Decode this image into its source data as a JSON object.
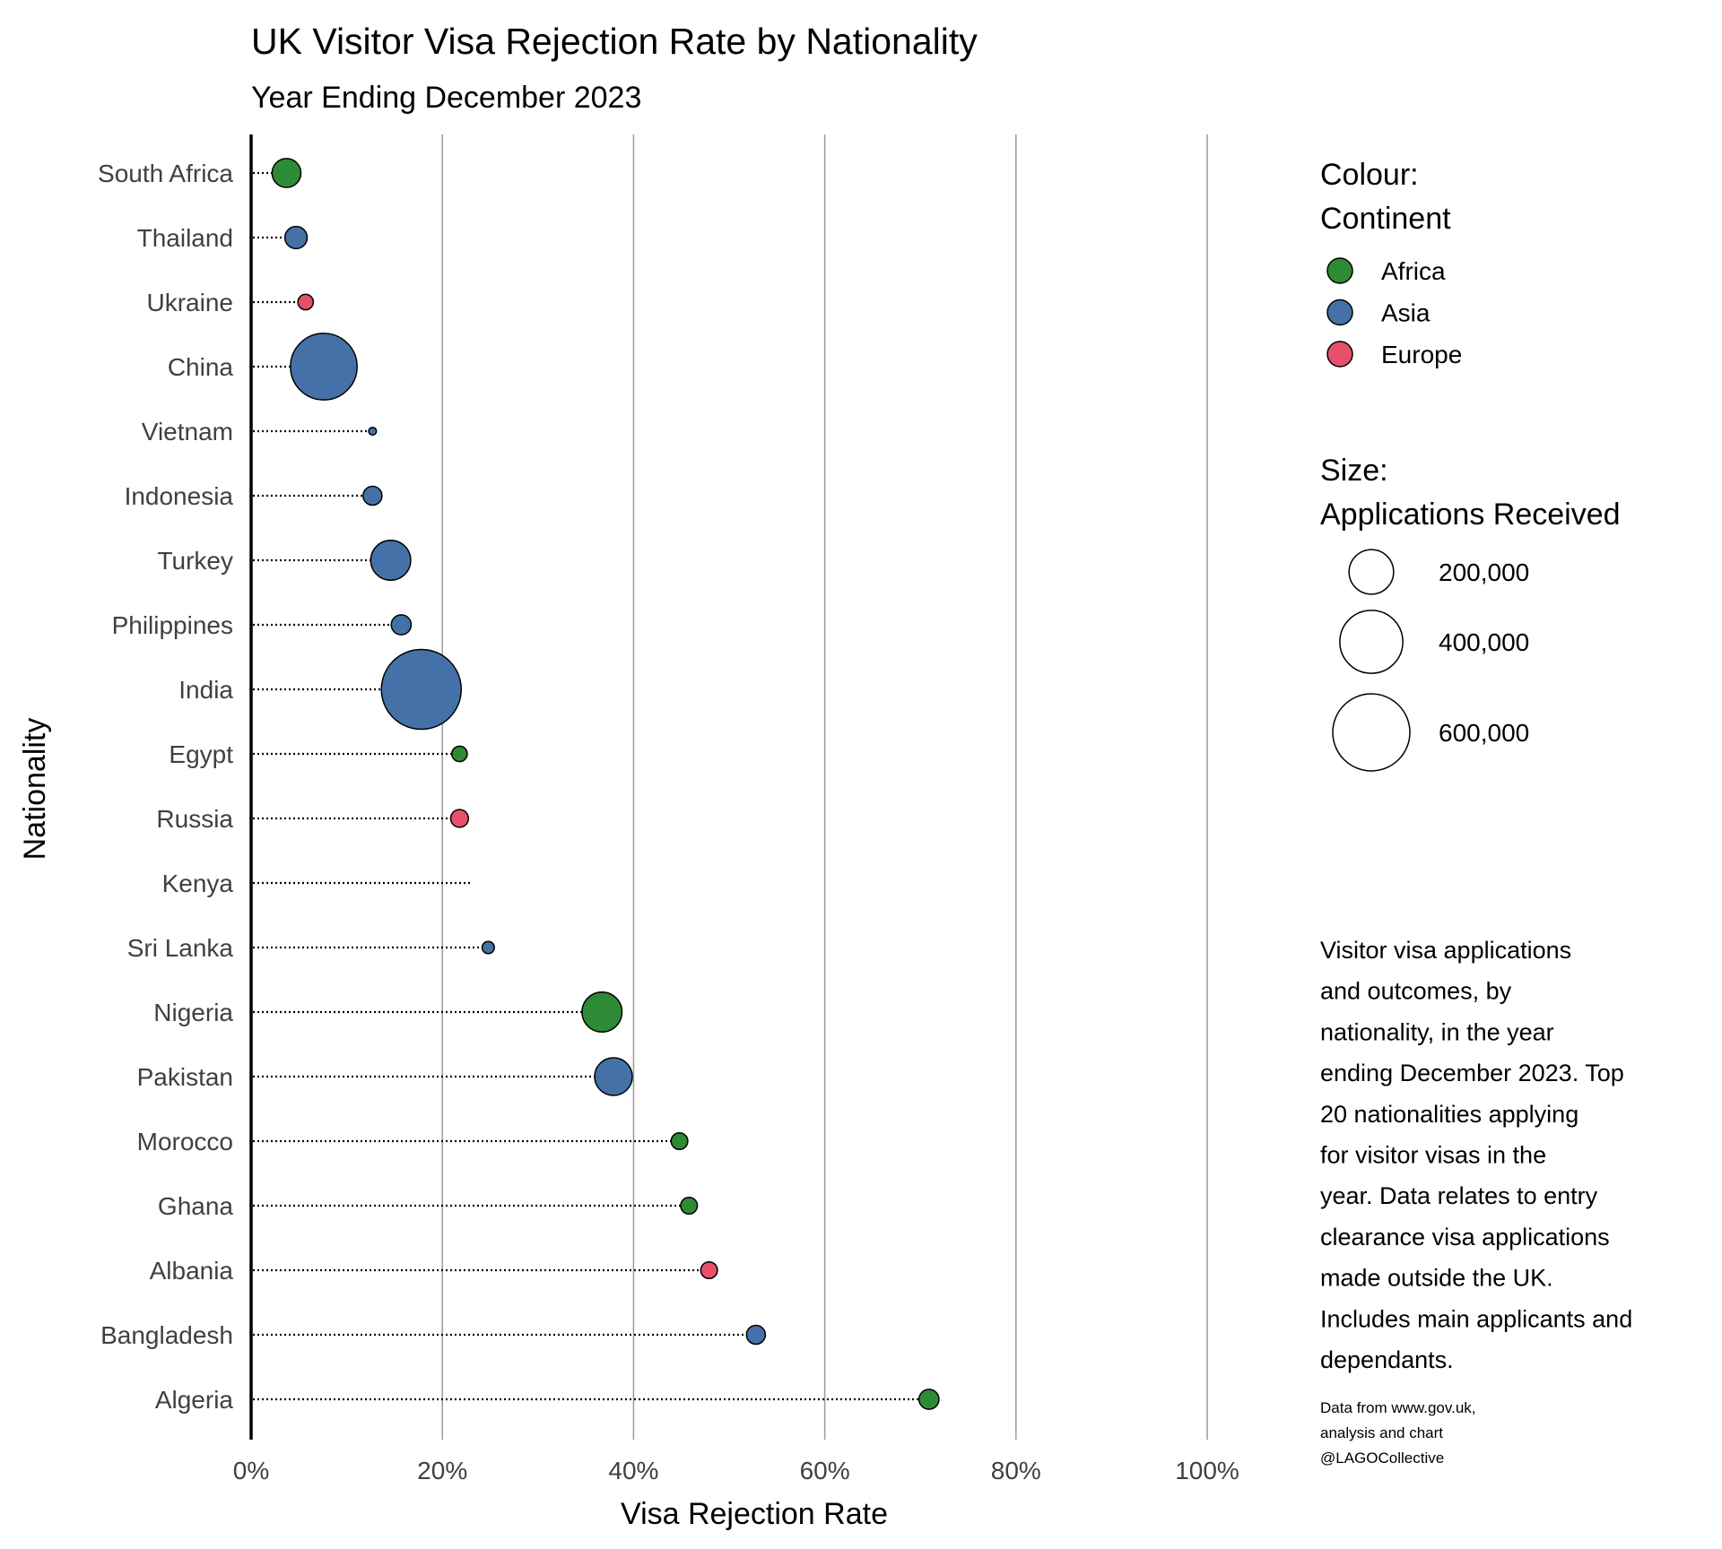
{
  "chart_data": {
    "type": "scatter",
    "title": "UK Visitor Visa Rejection Rate by Nationality",
    "subtitle": "Year Ending December 2023",
    "xlabel": "Visa Rejection Rate",
    "ylabel": "Nationality",
    "xlim": [
      0,
      100
    ],
    "x_ticks": [
      "0%",
      "20%",
      "40%",
      "60%",
      "80%",
      "100%"
    ],
    "x_tick_values": [
      0,
      20,
      40,
      60,
      80,
      100
    ],
    "grid": "vertical major",
    "colors": {
      "Africa": "#2e8b35",
      "Asia": "#4472a8",
      "Europe": "#e6506a"
    },
    "points": [
      {
        "nationality": "South Africa",
        "rate": 3.7,
        "continent": "Africa",
        "applications": 84000
      },
      {
        "nationality": "Thailand",
        "rate": 4.7,
        "continent": "Asia",
        "applications": 50000
      },
      {
        "nationality": "Ukraine",
        "rate": 5.7,
        "continent": "Europe",
        "applications": 24000
      },
      {
        "nationality": "China",
        "rate": 7.6,
        "continent": "Asia",
        "applications": 447000
      },
      {
        "nationality": "Vietnam",
        "rate": 12.7,
        "continent": "Asia",
        "applications": 6000
      },
      {
        "nationality": "Indonesia",
        "rate": 12.7,
        "continent": "Asia",
        "applications": 36000
      },
      {
        "nationality": "Turkey",
        "rate": 14.6,
        "continent": "Asia",
        "applications": 161000
      },
      {
        "nationality": "Philippines",
        "rate": 15.7,
        "continent": "Asia",
        "applications": 40000
      },
      {
        "nationality": "India",
        "rate": 17.8,
        "continent": "Asia",
        "applications": 643000
      },
      {
        "nationality": "Egypt",
        "rate": 21.8,
        "continent": "Africa",
        "applications": 24000
      },
      {
        "nationality": "Russia",
        "rate": 21.8,
        "continent": "Europe",
        "applications": 32000
      },
      {
        "nationality": "Kenya",
        "rate": 22.9,
        "continent": null,
        "applications": null
      },
      {
        "nationality": "Sri Lanka",
        "rate": 24.8,
        "continent": "Asia",
        "applications": 15000
      },
      {
        "nationality": "Nigeria",
        "rate": 36.7,
        "continent": "Africa",
        "applications": 161000
      },
      {
        "nationality": "Pakistan",
        "rate": 37.9,
        "continent": "Asia",
        "applications": 143000
      },
      {
        "nationality": "Morocco",
        "rate": 44.8,
        "continent": "Africa",
        "applications": 28000
      },
      {
        "nationality": "Ghana",
        "rate": 45.8,
        "continent": "Africa",
        "applications": 28000
      },
      {
        "nationality": "Albania",
        "rate": 47.9,
        "continent": "Europe",
        "applications": 28000
      },
      {
        "nationality": "Bangladesh",
        "rate": 52.8,
        "continent": "Asia",
        "applications": 36000
      },
      {
        "nationality": "Algeria",
        "rate": 70.9,
        "continent": "Africa",
        "applications": 40000
      }
    ],
    "legend_colour": {
      "title_line1": "Colour:",
      "title_line2": "Continent",
      "entries": [
        "Africa",
        "Asia",
        "Europe"
      ],
      "placement": "right"
    },
    "legend_size": {
      "title_line1": "Size:",
      "title_line2": "Applications Received",
      "values": [
        200000,
        400000,
        600000
      ],
      "labels": [
        "200,000",
        "400,000",
        "600,000"
      ],
      "placement": "right"
    },
    "note_lines": [
      "Visitor visa applications",
      "and outcomes, by",
      "nationality, in the year",
      "ending December 2023. Top",
      "20 nationalities applying",
      "for visitor visas in the",
      "year. Data relates to entry",
      "clearance visa applications",
      "made outside the UK.",
      "Includes main applicants and",
      "dependants."
    ],
    "credit_lines": [
      "Data from www.gov.uk,",
      "analysis and chart",
      "@LAGOCollective"
    ]
  }
}
